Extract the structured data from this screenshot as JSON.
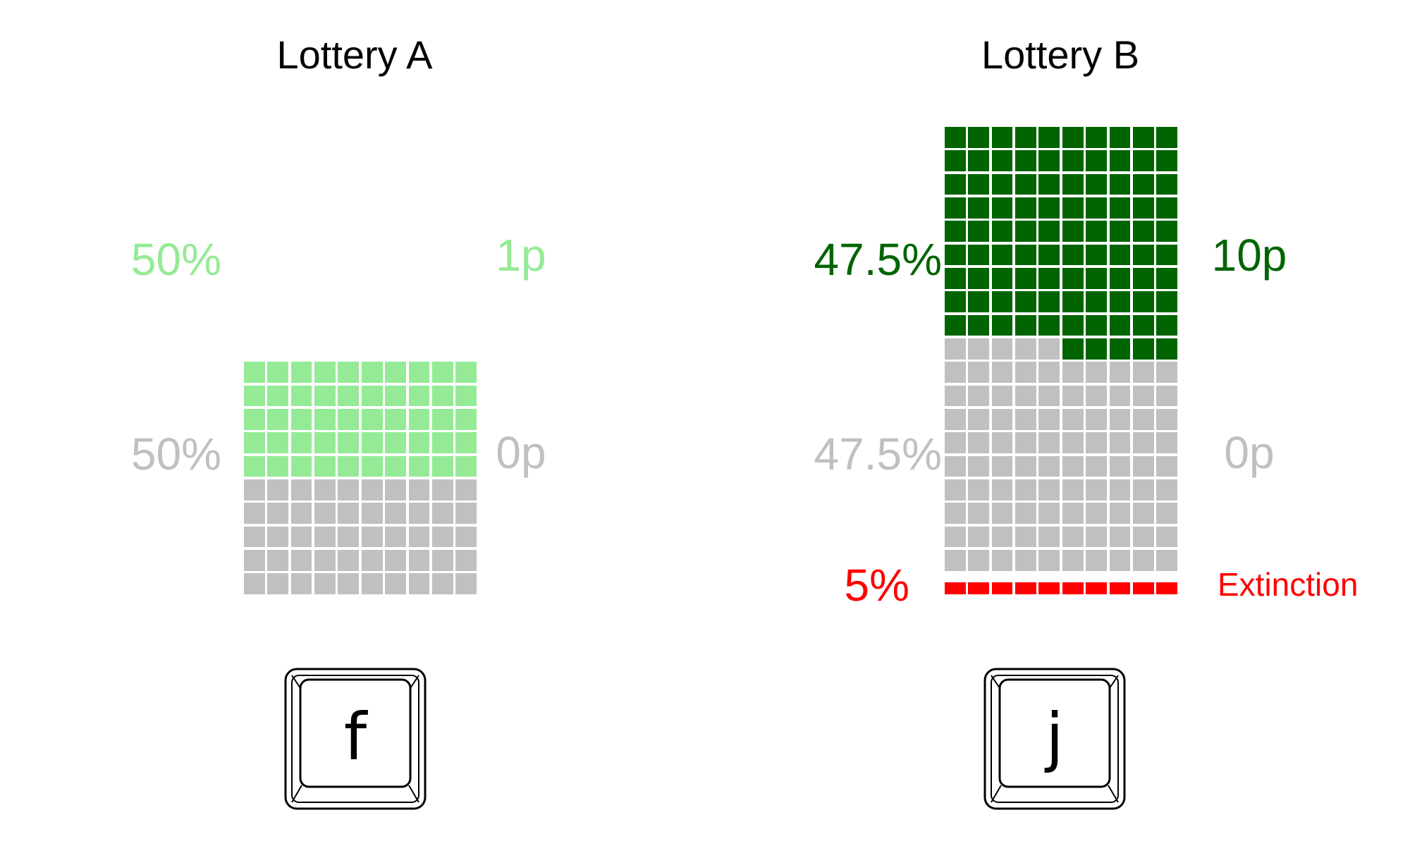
{
  "colors": {
    "light_green": "#95ea95",
    "dark_green": "#006400",
    "gray": "#c0c0c0",
    "red": "#ff0000"
  },
  "lottery_a": {
    "title": "Lottery A",
    "outcomes": [
      {
        "percent": "50%",
        "payoff": "1p",
        "cells": 50,
        "color": "#95ea95"
      },
      {
        "percent": "50%",
        "payoff": "0p",
        "cells": 50,
        "color": "#c0c0c0"
      }
    ],
    "key": "f"
  },
  "lottery_b": {
    "title": "Lottery B",
    "outcomes": [
      {
        "percent": "47.5%",
        "payoff": "10p",
        "cells": 95,
        "color": "#006400"
      },
      {
        "percent": "47.5%",
        "payoff": "0p",
        "cells": 95,
        "color": "#c0c0c0"
      },
      {
        "percent": "5%",
        "payoff": "Extinction",
        "cells": 10,
        "color": "#ff0000"
      }
    ],
    "key": "j"
  }
}
